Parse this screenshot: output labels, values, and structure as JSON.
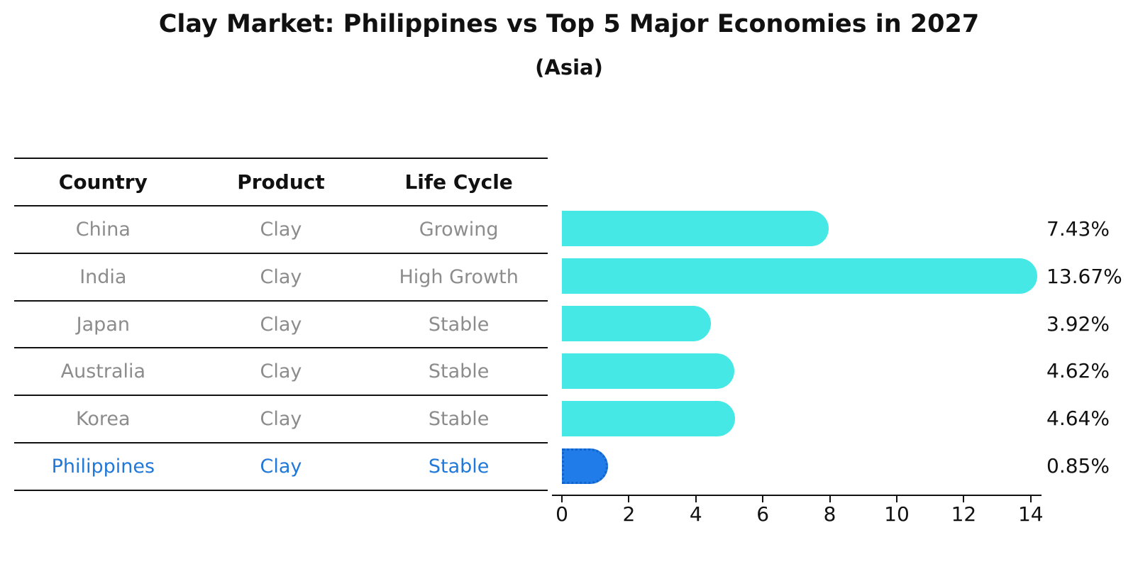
{
  "header": {
    "title": "Clay Market: Philippines vs Top 5 Major Economies in 2027",
    "subtitle": "(Asia)"
  },
  "table": {
    "columns": [
      "Country",
      "Product",
      "Life Cycle"
    ],
    "rows": [
      {
        "country": "China",
        "product": "Clay",
        "life_cycle": "Growing",
        "highlight": false
      },
      {
        "country": "India",
        "product": "Clay",
        "life_cycle": "High Growth",
        "highlight": false
      },
      {
        "country": "Japan",
        "product": "Clay",
        "life_cycle": "Stable",
        "highlight": false
      },
      {
        "country": "Australia",
        "product": "Clay",
        "life_cycle": "Stable",
        "highlight": false
      },
      {
        "country": "Korea",
        "product": "Clay",
        "life_cycle": "Stable",
        "highlight": false
      },
      {
        "country": "Philippines",
        "product": "Clay",
        "life_cycle": "Stable",
        "highlight": true
      }
    ]
  },
  "chart_data": {
    "type": "bar",
    "orientation": "horizontal",
    "title": "Clay Market: Philippines vs Top 5 Major Economies in 2027",
    "subtitle": "(Asia)",
    "categories": [
      "China",
      "India",
      "Japan",
      "Australia",
      "Korea",
      "Philippines"
    ],
    "values": [
      7.43,
      13.67,
      3.92,
      4.62,
      4.64,
      0.85
    ],
    "value_labels": [
      "7.43%",
      "13.67%",
      "3.92%",
      "4.62%",
      "4.64%",
      "0.85%"
    ],
    "highlight_index": 5,
    "xlim": [
      0,
      14.3
    ],
    "xticks": [
      0,
      2,
      4,
      6,
      8,
      10,
      12,
      14
    ],
    "grid": false,
    "legend": "none",
    "colors": {
      "bar": "#45e8e4",
      "highlight_bar": "#1f7ce8",
      "highlight_border": "#1362c8",
      "highlight_text": "#2078d8",
      "row_text": "#8c8c8c",
      "axis": "#111111",
      "label_text": "#111111"
    }
  }
}
